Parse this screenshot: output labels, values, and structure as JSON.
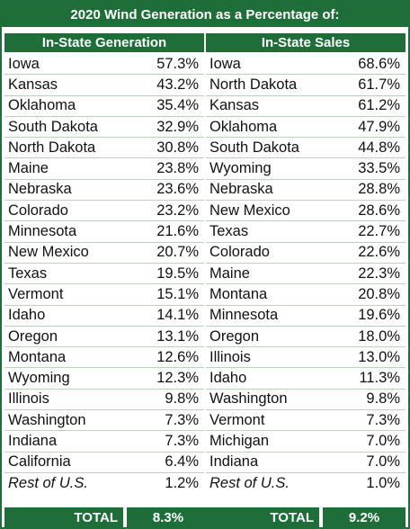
{
  "title": "2020 Wind Generation as a Percentage of:",
  "left": {
    "header": "In-State Generation",
    "rows": [
      {
        "state": "Iowa",
        "pct": "57.3%"
      },
      {
        "state": "Kansas",
        "pct": "43.2%"
      },
      {
        "state": "Oklahoma",
        "pct": "35.4%"
      },
      {
        "state": "South Dakota",
        "pct": "32.9%"
      },
      {
        "state": "North Dakota",
        "pct": "30.8%"
      },
      {
        "state": "Maine",
        "pct": "23.8%"
      },
      {
        "state": "Nebraska",
        "pct": "23.6%"
      },
      {
        "state": "Colorado",
        "pct": "23.2%"
      },
      {
        "state": "Minnesota",
        "pct": "21.6%"
      },
      {
        "state": "New Mexico",
        "pct": "20.7%"
      },
      {
        "state": "Texas",
        "pct": "19.5%"
      },
      {
        "state": "Vermont",
        "pct": "15.1%"
      },
      {
        "state": "Idaho",
        "pct": "14.1%"
      },
      {
        "state": "Oregon",
        "pct": "13.1%"
      },
      {
        "state": "Montana",
        "pct": "12.6%"
      },
      {
        "state": "Wyoming",
        "pct": "12.3%"
      },
      {
        "state": "Illinois",
        "pct": "9.8%"
      },
      {
        "state": "Washington",
        "pct": "7.3%"
      },
      {
        "state": "Indiana",
        "pct": "7.3%"
      },
      {
        "state": "California",
        "pct": "6.4%"
      },
      {
        "state": "Rest of U.S.",
        "pct": "1.2%"
      }
    ],
    "total_label": "TOTAL",
    "total_value": "8.3%"
  },
  "right": {
    "header": "In-State Sales",
    "rows": [
      {
        "state": "Iowa",
        "pct": "68.6%"
      },
      {
        "state": "North Dakota",
        "pct": "61.7%"
      },
      {
        "state": "Kansas",
        "pct": "61.2%"
      },
      {
        "state": "Oklahoma",
        "pct": "47.9%"
      },
      {
        "state": "South Dakota",
        "pct": "44.8%"
      },
      {
        "state": "Wyoming",
        "pct": "33.5%"
      },
      {
        "state": "Nebraska",
        "pct": "28.8%"
      },
      {
        "state": "New Mexico",
        "pct": "28.6%"
      },
      {
        "state": "Texas",
        "pct": "22.7%"
      },
      {
        "state": "Colorado",
        "pct": "22.6%"
      },
      {
        "state": "Maine",
        "pct": "22.3%"
      },
      {
        "state": "Montana",
        "pct": "20.8%"
      },
      {
        "state": "Minnesota",
        "pct": "19.6%"
      },
      {
        "state": "Oregon",
        "pct": "18.0%"
      },
      {
        "state": "Illinois",
        "pct": "13.0%"
      },
      {
        "state": "Idaho",
        "pct": "11.3%"
      },
      {
        "state": "Washington",
        "pct": "9.8%"
      },
      {
        "state": "Vermont",
        "pct": "7.3%"
      },
      {
        "state": "Michigan",
        "pct": "7.0%"
      },
      {
        "state": "Indiana",
        "pct": "7.0%"
      },
      {
        "state": "Rest of U.S.",
        "pct": "1.0%"
      }
    ],
    "total_label": "TOTAL",
    "total_value": "9.2%"
  },
  "colors": {
    "green": "#1f6e3a",
    "row_line": "#b9d3bf"
  }
}
